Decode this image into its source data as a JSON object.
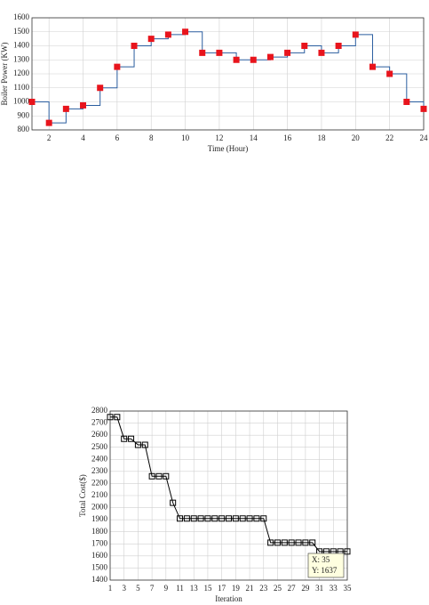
{
  "chart_data": [
    {
      "type": "step",
      "x_label": "Time (Hour)",
      "y_label": "Boiler Power (KW)",
      "x": [
        1,
        2,
        3,
        4,
        5,
        6,
        7,
        8,
        9,
        10,
        11,
        12,
        13,
        14,
        15,
        16,
        17,
        18,
        19,
        20,
        21,
        22,
        23,
        24
      ],
      "series": [
        {
          "color": "#2a5d9f",
          "marker_color": "#e8141c",
          "values": [
            1000,
            850,
            950,
            975,
            1100,
            1250,
            1400,
            1450,
            1480,
            1500,
            1350,
            1350,
            1300,
            1300,
            1320,
            1350,
            1400,
            1350,
            1400,
            1480,
            1250,
            1200,
            1000,
            950
          ]
        }
      ],
      "xlim": [
        1,
        24
      ],
      "xticks": [
        2,
        4,
        6,
        8,
        10,
        12,
        14,
        16,
        18,
        20,
        22,
        24
      ],
      "ylim": [
        800,
        1600
      ],
      "yticks": [
        800,
        900,
        1000,
        1100,
        1200,
        1300,
        1400,
        1500,
        1600
      ],
      "grid": true
    },
    {
      "type": "line",
      "x_label": "Iteration",
      "y_label": "Total Cost($)",
      "x": [
        1,
        2,
        3,
        4,
        5,
        6,
        7,
        8,
        9,
        10,
        11,
        12,
        13,
        14,
        15,
        16,
        17,
        18,
        19,
        20,
        21,
        22,
        23,
        24,
        25,
        26,
        27,
        28,
        29,
        30,
        31,
        32,
        33,
        34,
        35
      ],
      "series": [
        {
          "color": "#000000",
          "marker_color": "#000000",
          "values": [
            2750,
            2750,
            2570,
            2570,
            2520,
            2520,
            2260,
            2260,
            2260,
            2040,
            1910,
            1910,
            1910,
            1910,
            1910,
            1910,
            1910,
            1910,
            1910,
            1910,
            1910,
            1910,
            1910,
            1710,
            1710,
            1710,
            1710,
            1710,
            1710,
            1710,
            1637,
            1637,
            1637,
            1637,
            1637
          ]
        }
      ],
      "xlim": [
        1,
        35
      ],
      "xticks": [
        1,
        3,
        5,
        7,
        9,
        11,
        13,
        15,
        17,
        19,
        21,
        23,
        25,
        27,
        29,
        31,
        33,
        35
      ],
      "ylim": [
        1400,
        2800
      ],
      "yticks": [
        1400,
        1500,
        1600,
        1700,
        1800,
        1900,
        2000,
        2100,
        2200,
        2300,
        2400,
        2500,
        2600,
        2700,
        2800
      ],
      "grid": true,
      "annotation": [
        "X: 35",
        "Y: 1637"
      ]
    }
  ]
}
